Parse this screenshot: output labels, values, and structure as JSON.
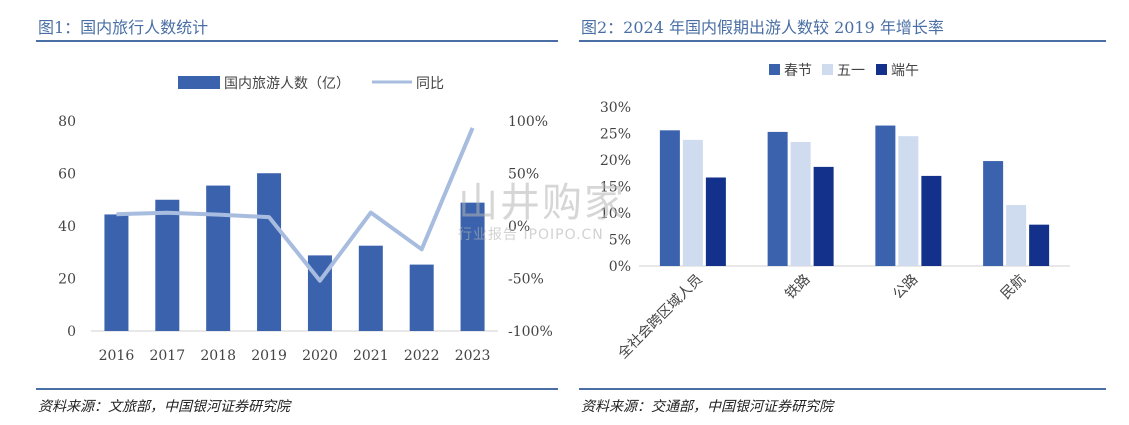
{
  "figure1": {
    "title": "图1：国内旅行人数统计",
    "source": "资料来源：文旅部，中国银河证券研究院"
  },
  "figure2": {
    "title": "图2：2024 年国内假期出游人数较 2019 年增长率",
    "source": "资料来源：交通部，中国银河证券研究院"
  },
  "watermark": {
    "main": "山井购家",
    "sub": "行业报告 IPOIPO.CN"
  },
  "colors": {
    "accent": "#4a6fa5",
    "bar": "#3a62ad",
    "line": "#a7bcdf",
    "spring": "#3a62ad",
    "mayday": "#cfdcf0",
    "dragon": "#13318a"
  },
  "chart_data": [
    {
      "type": "bar",
      "title": "",
      "categories": [
        "2016",
        "2017",
        "2018",
        "2019",
        "2020",
        "2021",
        "2022",
        "2023"
      ],
      "series": [
        {
          "name": "国内旅游人数（亿）",
          "type": "bar",
          "axis": "left",
          "values": [
            44.4,
            50.0,
            55.4,
            60.1,
            28.8,
            32.5,
            25.3,
            48.9
          ]
        },
        {
          "name": "同比",
          "type": "line",
          "axis": "right",
          "values": [
            0.112,
            0.126,
            0.108,
            0.084,
            -0.521,
            0.128,
            -0.222,
            0.934
          ]
        }
      ],
      "ylim": [
        0,
        80
      ],
      "yticks": [
        "0",
        "20",
        "40",
        "60",
        "80"
      ],
      "ylim_right": [
        -1.0,
        1.0
      ],
      "yticks_right": [
        "-100%",
        "-50%",
        "0%",
        "50%",
        "100%"
      ],
      "legend": "top",
      "grid": false
    },
    {
      "type": "bar",
      "title": "",
      "categories": [
        "全社会跨区域人员",
        "铁路",
        "公路",
        "民航"
      ],
      "series": [
        {
          "name": "春节",
          "values": [
            0.256,
            0.253,
            0.265,
            0.198
          ]
        },
        {
          "name": "五一",
          "values": [
            0.238,
            0.234,
            0.245,
            0.115
          ]
        },
        {
          "name": "端午",
          "values": [
            0.167,
            0.187,
            0.17,
            0.078
          ]
        }
      ],
      "ylim": [
        0,
        0.3
      ],
      "yticks": [
        "0%",
        "5%",
        "10%",
        "15%",
        "20%",
        "25%",
        "30%"
      ],
      "legend": "top",
      "grid": false
    }
  ]
}
